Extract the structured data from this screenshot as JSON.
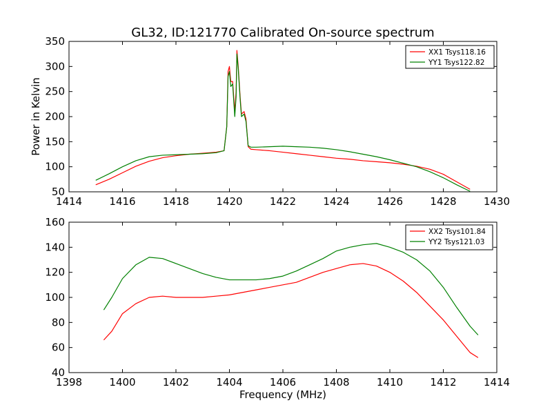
{
  "chart_data": [
    {
      "type": "line",
      "title": "GL32, ID:121770 Calibrated On-source spectrum",
      "xlabel": "",
      "ylabel": "Power in Kelvin",
      "xlim": [
        1414,
        1430
      ],
      "ylim": [
        50,
        350
      ],
      "xticks": [
        "1414",
        "1416",
        "1418",
        "1420",
        "1422",
        "1424",
        "1426",
        "1428",
        "1430"
      ],
      "yticks": [
        "50",
        "100",
        "150",
        "200",
        "250",
        "300",
        "350"
      ],
      "legend_position": "top-right",
      "series": [
        {
          "name": "XX1 Tsys118.16",
          "color": "#ff0000",
          "points": [
            [
              1415,
              64
            ],
            [
              1415.5,
              75
            ],
            [
              1416,
              88
            ],
            [
              1416.5,
              101
            ],
            [
              1417,
              111
            ],
            [
              1417.5,
              118
            ],
            [
              1418,
              122
            ],
            [
              1418.5,
              125
            ],
            [
              1419,
              127
            ],
            [
              1419.5,
              129
            ],
            [
              1419.8,
              132
            ],
            [
              1419.9,
              180
            ],
            [
              1419.95,
              290
            ],
            [
              1420,
              300
            ],
            [
              1420.05,
              270
            ],
            [
              1420.12,
              270
            ],
            [
              1420.2,
              210
            ],
            [
              1420.25,
              250
            ],
            [
              1420.28,
              332
            ],
            [
              1420.33,
              300
            ],
            [
              1420.4,
              240
            ],
            [
              1420.45,
              205
            ],
            [
              1420.55,
              210
            ],
            [
              1420.62,
              195
            ],
            [
              1420.7,
              140
            ],
            [
              1420.8,
              135
            ],
            [
              1421,
              134
            ],
            [
              1421.5,
              132
            ],
            [
              1422,
              129
            ],
            [
              1422.5,
              126
            ],
            [
              1423,
              123
            ],
            [
              1423.5,
              120
            ],
            [
              1424,
              117
            ],
            [
              1424.5,
              115
            ],
            [
              1425,
              112
            ],
            [
              1425.5,
              110
            ],
            [
              1426,
              108
            ],
            [
              1426.5,
              105
            ],
            [
              1427,
              101
            ],
            [
              1427.5,
              95
            ],
            [
              1428,
              85
            ],
            [
              1428.5,
              70
            ],
            [
              1429,
              55
            ]
          ]
        },
        {
          "name": "YY1 Tsys122.82",
          "color": "#008000",
          "points": [
            [
              1415,
              73
            ],
            [
              1415.5,
              86
            ],
            [
              1416,
              100
            ],
            [
              1416.5,
              112
            ],
            [
              1417,
              120
            ],
            [
              1417.5,
              123
            ],
            [
              1418,
              124
            ],
            [
              1418.5,
              125
            ],
            [
              1419,
              126
            ],
            [
              1419.5,
              128
            ],
            [
              1419.8,
              132
            ],
            [
              1419.9,
              180
            ],
            [
              1419.95,
              280
            ],
            [
              1420,
              290
            ],
            [
              1420.05,
              260
            ],
            [
              1420.12,
              265
            ],
            [
              1420.2,
              200
            ],
            [
              1420.25,
              240
            ],
            [
              1420.28,
              325
            ],
            [
              1420.33,
              295
            ],
            [
              1420.4,
              235
            ],
            [
              1420.45,
              200
            ],
            [
              1420.55,
              205
            ],
            [
              1420.62,
              190
            ],
            [
              1420.7,
              142
            ],
            [
              1420.8,
              139
            ],
            [
              1421,
              139
            ],
            [
              1421.5,
              140
            ],
            [
              1422,
              141
            ],
            [
              1422.5,
              140
            ],
            [
              1423,
              139
            ],
            [
              1423.5,
              137
            ],
            [
              1424,
              134
            ],
            [
              1424.5,
              130
            ],
            [
              1425,
              125
            ],
            [
              1425.5,
              120
            ],
            [
              1426,
              114
            ],
            [
              1426.5,
              107
            ],
            [
              1427,
              100
            ],
            [
              1427.5,
              90
            ],
            [
              1428,
              78
            ],
            [
              1428.5,
              64
            ],
            [
              1429,
              51
            ]
          ]
        }
      ]
    },
    {
      "type": "line",
      "title": "",
      "xlabel": "Frequency (MHz)",
      "ylabel": "",
      "xlim": [
        1398,
        1414
      ],
      "ylim": [
        40,
        160
      ],
      "xticks": [
        "1398",
        "1400",
        "1402",
        "1404",
        "1406",
        "1408",
        "1410",
        "1412",
        "1414"
      ],
      "yticks": [
        "40",
        "60",
        "80",
        "100",
        "120",
        "140",
        "160"
      ],
      "legend_position": "top-right",
      "series": [
        {
          "name": "XX2 Tsys101.84",
          "color": "#ff0000",
          "points": [
            [
              1399.3,
              66
            ],
            [
              1399.6,
              73
            ],
            [
              1400,
              87
            ],
            [
              1400.5,
              95
            ],
            [
              1401,
              100
            ],
            [
              1401.5,
              101
            ],
            [
              1402,
              100
            ],
            [
              1402.5,
              100
            ],
            [
              1403,
              100
            ],
            [
              1403.5,
              101
            ],
            [
              1404,
              102
            ],
            [
              1404.5,
              104
            ],
            [
              1405,
              106
            ],
            [
              1405.5,
              108
            ],
            [
              1406,
              110
            ],
            [
              1406.5,
              112
            ],
            [
              1407,
              116
            ],
            [
              1407.5,
              120
            ],
            [
              1408,
              123
            ],
            [
              1408.5,
              126
            ],
            [
              1409,
              127
            ],
            [
              1409.5,
              125
            ],
            [
              1410,
              120
            ],
            [
              1410.5,
              113
            ],
            [
              1411,
              104
            ],
            [
              1411.5,
              93
            ],
            [
              1412,
              82
            ],
            [
              1412.5,
              69
            ],
            [
              1413,
              56
            ],
            [
              1413.3,
              52
            ]
          ]
        },
        {
          "name": "YY2 Tsys121.03",
          "color": "#008000",
          "points": [
            [
              1399.3,
              90
            ],
            [
              1399.6,
              100
            ],
            [
              1400,
              115
            ],
            [
              1400.5,
              126
            ],
            [
              1401,
              132
            ],
            [
              1401.5,
              131
            ],
            [
              1402,
              127
            ],
            [
              1402.5,
              123
            ],
            [
              1403,
              119
            ],
            [
              1403.5,
              116
            ],
            [
              1404,
              114
            ],
            [
              1404.5,
              114
            ],
            [
              1405,
              114
            ],
            [
              1405.5,
              115
            ],
            [
              1406,
              117
            ],
            [
              1406.5,
              121
            ],
            [
              1407,
              126
            ],
            [
              1407.5,
              131
            ],
            [
              1408,
              137
            ],
            [
              1408.5,
              140
            ],
            [
              1409,
              142
            ],
            [
              1409.5,
              143
            ],
            [
              1410,
              140
            ],
            [
              1410.5,
              136
            ],
            [
              1411,
              130
            ],
            [
              1411.5,
              121
            ],
            [
              1412,
              108
            ],
            [
              1412.5,
              92
            ],
            [
              1413,
              77
            ],
            [
              1413.3,
              70
            ]
          ]
        }
      ]
    }
  ]
}
